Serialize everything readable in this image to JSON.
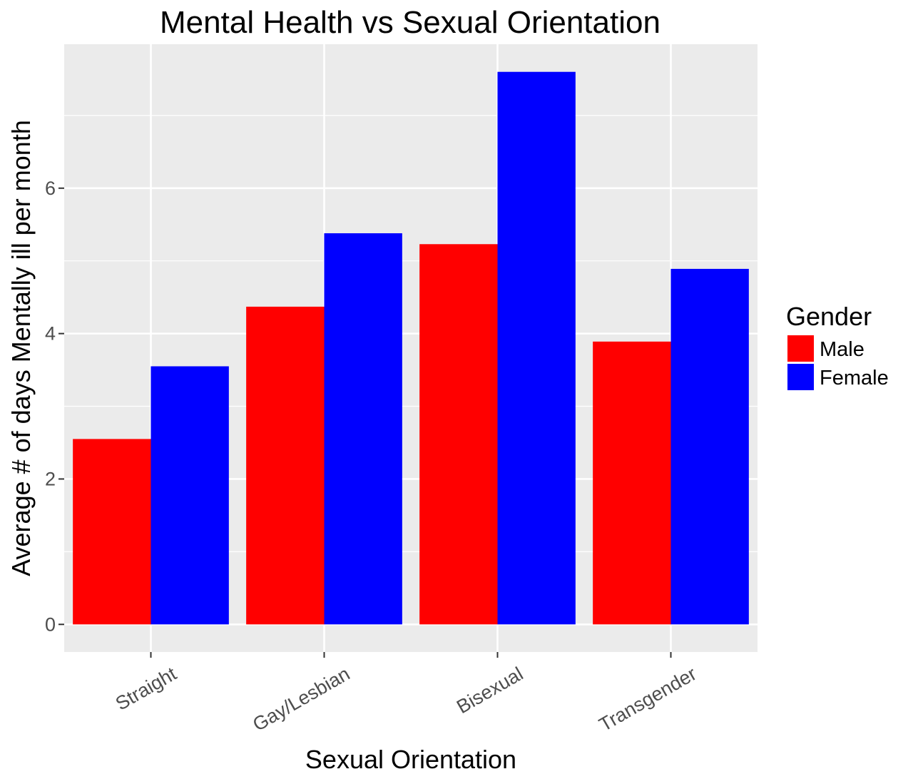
{
  "chart_data": {
    "type": "bar",
    "title": "Mental Health vs Sexual Orientation",
    "xlabel": "Sexual Orientation",
    "ylabel": "Average # of days Mentally ill per month",
    "categories": [
      "Straight",
      "Gay/Lesbian",
      "Bisexual",
      "Transgender"
    ],
    "series": [
      {
        "name": "Male",
        "color": "#ff0000",
        "values": [
          2.55,
          4.37,
          5.23,
          3.89
        ]
      },
      {
        "name": "Female",
        "color": "#0000ff",
        "values": [
          3.55,
          5.38,
          7.6,
          4.89
        ]
      }
    ],
    "yticks": [
      0,
      2,
      4,
      6
    ],
    "ylim": [
      -0.38,
      7.98
    ],
    "grid": true,
    "legend": {
      "title": "Gender",
      "position": "right"
    },
    "panel_background": "#ebebeb",
    "grid_color": "#ffffff"
  }
}
